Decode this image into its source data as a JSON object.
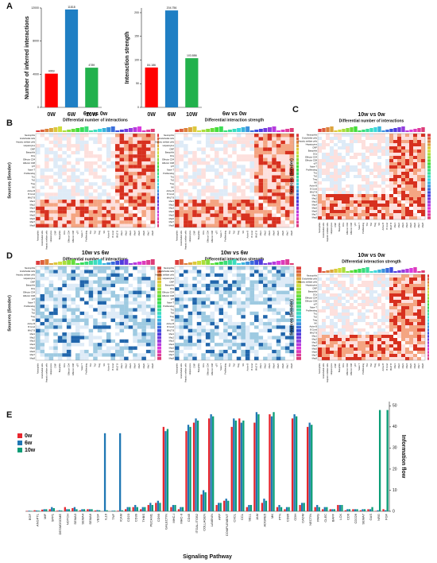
{
  "panels": [
    "A",
    "B",
    "C",
    "D",
    "E"
  ],
  "heatmap_ylabel": "Sources (Sender)",
  "cell_types": [
    "Neutrophils",
    "Endothelial cells",
    "Hepatic stellate cells",
    "Hepatocytes",
    "CMP",
    "Basophils",
    "DCs",
    "Effector CD4",
    "Effector CD8",
    "γδT",
    "Naive T",
    "Proliferating",
    "Th1",
    "Th2",
    "Treg",
    "NK",
    "Active B",
    "B Cond",
    "MALT B",
    "Mac1",
    "Mac2",
    "Mac3",
    "Mac4",
    "Mac5",
    "Mac6",
    "Mac7",
    "Mac8"
  ],
  "heatmaps": [
    {
      "title": "6w vs 0w",
      "subtitle": "Differential number of interactions"
    },
    {
      "title": "6w vs 0w",
      "subtitle": "Differential interaction strength"
    },
    {
      "title": "10w vs 0w",
      "subtitle": "Differential number of interactions"
    },
    {
      "title": "10w vs 6w",
      "subtitle": "Differential number of interactions"
    },
    {
      "title": "10w vs 6w",
      "subtitle": "Differential interaction strength"
    },
    {
      "title": "10w vs 0w",
      "subtitle": "Differential interaction strength"
    }
  ],
  "chart_data": [
    {
      "type": "bar",
      "ylabel": "Number of inferred interactions",
      "categories": [
        "0W",
        "6W",
        "10W"
      ],
      "values": [
        4069,
        11818,
        4789
      ],
      "value_labels": [
        "4069",
        "11818",
        "4789"
      ],
      "colors": [
        "#ff0000",
        "#1f7fc4",
        "#22b14c"
      ],
      "ylim": [
        0,
        12000
      ],
      "yticks": [
        0,
        4000,
        8000,
        12000
      ]
    },
    {
      "type": "bar",
      "ylabel": "Interaction strength",
      "categories": [
        "0W",
        "6W",
        "10W"
      ],
      "values": [
        84.186,
        204.756,
        103.886
      ],
      "value_labels": [
        "84.186",
        "204.756",
        "103.886"
      ],
      "colors": [
        "#ff0000",
        "#1f7fc4",
        "#22b14c"
      ],
      "ylim": [
        0,
        210
      ],
      "yticks": [
        0,
        50,
        100,
        150,
        200
      ]
    },
    {
      "type": "grouped_bar",
      "xlabel": "Signaling Pathway",
      "y2label": "Information flow",
      "y2lim": [
        0,
        52
      ],
      "y2ticks": [
        0,
        10,
        20,
        30,
        40,
        50
      ],
      "legend": "upper left",
      "categories": [
        "EGF",
        "ANGPTL",
        "MIF",
        "SPP1",
        "DESMOSOME",
        "NOTCH",
        "SEMA3",
        "SEMA4",
        "SEMA6",
        "VEGF",
        "IL16",
        "TNF",
        "ICAM",
        "CD23",
        "CD39",
        "THBS",
        "PECAM1",
        "CD99",
        "GALECTIN",
        "MHC-I",
        "MHC-II",
        "CD45",
        "ITGAL-ITGB2",
        "COLLAGEN",
        "LAMININ",
        "APP",
        "COMPLEMENT",
        "CXCL",
        "CCL",
        "SELL",
        "JAM",
        "ADGRE5",
        "MK",
        "PTN",
        "CD86",
        "CDH",
        "CADM",
        "NECTIN",
        "PARs",
        "CLEC",
        "BAFF",
        "LCK",
        "CD6",
        "CD226",
        "SEMA7",
        "GAS",
        "NRG",
        "FGF"
      ],
      "series": [
        {
          "name": "0w",
          "color": "#e8262e",
          "axis": "y2",
          "values": [
            0.2,
            0.5,
            0.8,
            1,
            0.3,
            2,
            1.5,
            0.5,
            1,
            0.4,
            0,
            0,
            0.3,
            1,
            2,
            1,
            3,
            4,
            40,
            2,
            1,
            38,
            42,
            8,
            44,
            3,
            5,
            40,
            44,
            2,
            42,
            4,
            46,
            2,
            1,
            44,
            3,
            40,
            2,
            1,
            1,
            3,
            0.5,
            1,
            0.5,
            1,
            0.2,
            1
          ]
        },
        {
          "name": "6w",
          "color": "#1f77b4",
          "axis": "y2",
          "values": [
            0.3,
            0.4,
            1,
            2,
            0.5,
            1,
            2,
            1,
            1,
            0.6,
            37,
            0.3,
            37,
            2,
            3,
            2,
            4,
            5,
            38,
            3,
            2,
            41,
            44,
            10,
            46,
            4,
            6,
            44,
            42,
            3,
            47,
            6,
            45,
            3,
            2,
            46,
            4,
            42,
            3,
            2,
            1,
            3,
            1,
            1,
            1,
            1,
            0.5,
            0.5
          ]
        },
        {
          "name": "10w",
          "color": "#0a9d76",
          "axis": "y2",
          "values": [
            0.2,
            0.3,
            1,
            1.5,
            0.4,
            1,
            1,
            1,
            1,
            0.5,
            0.5,
            0.3,
            0.5,
            2,
            2,
            2,
            3,
            4,
            39,
            3,
            2,
            40,
            43,
            9,
            45,
            4,
            5,
            43,
            43,
            3,
            46,
            5,
            47,
            2,
            2,
            45,
            4,
            41,
            2,
            2,
            1,
            3,
            1,
            1,
            1,
            2,
            48,
            48
          ]
        }
      ]
    }
  ]
}
